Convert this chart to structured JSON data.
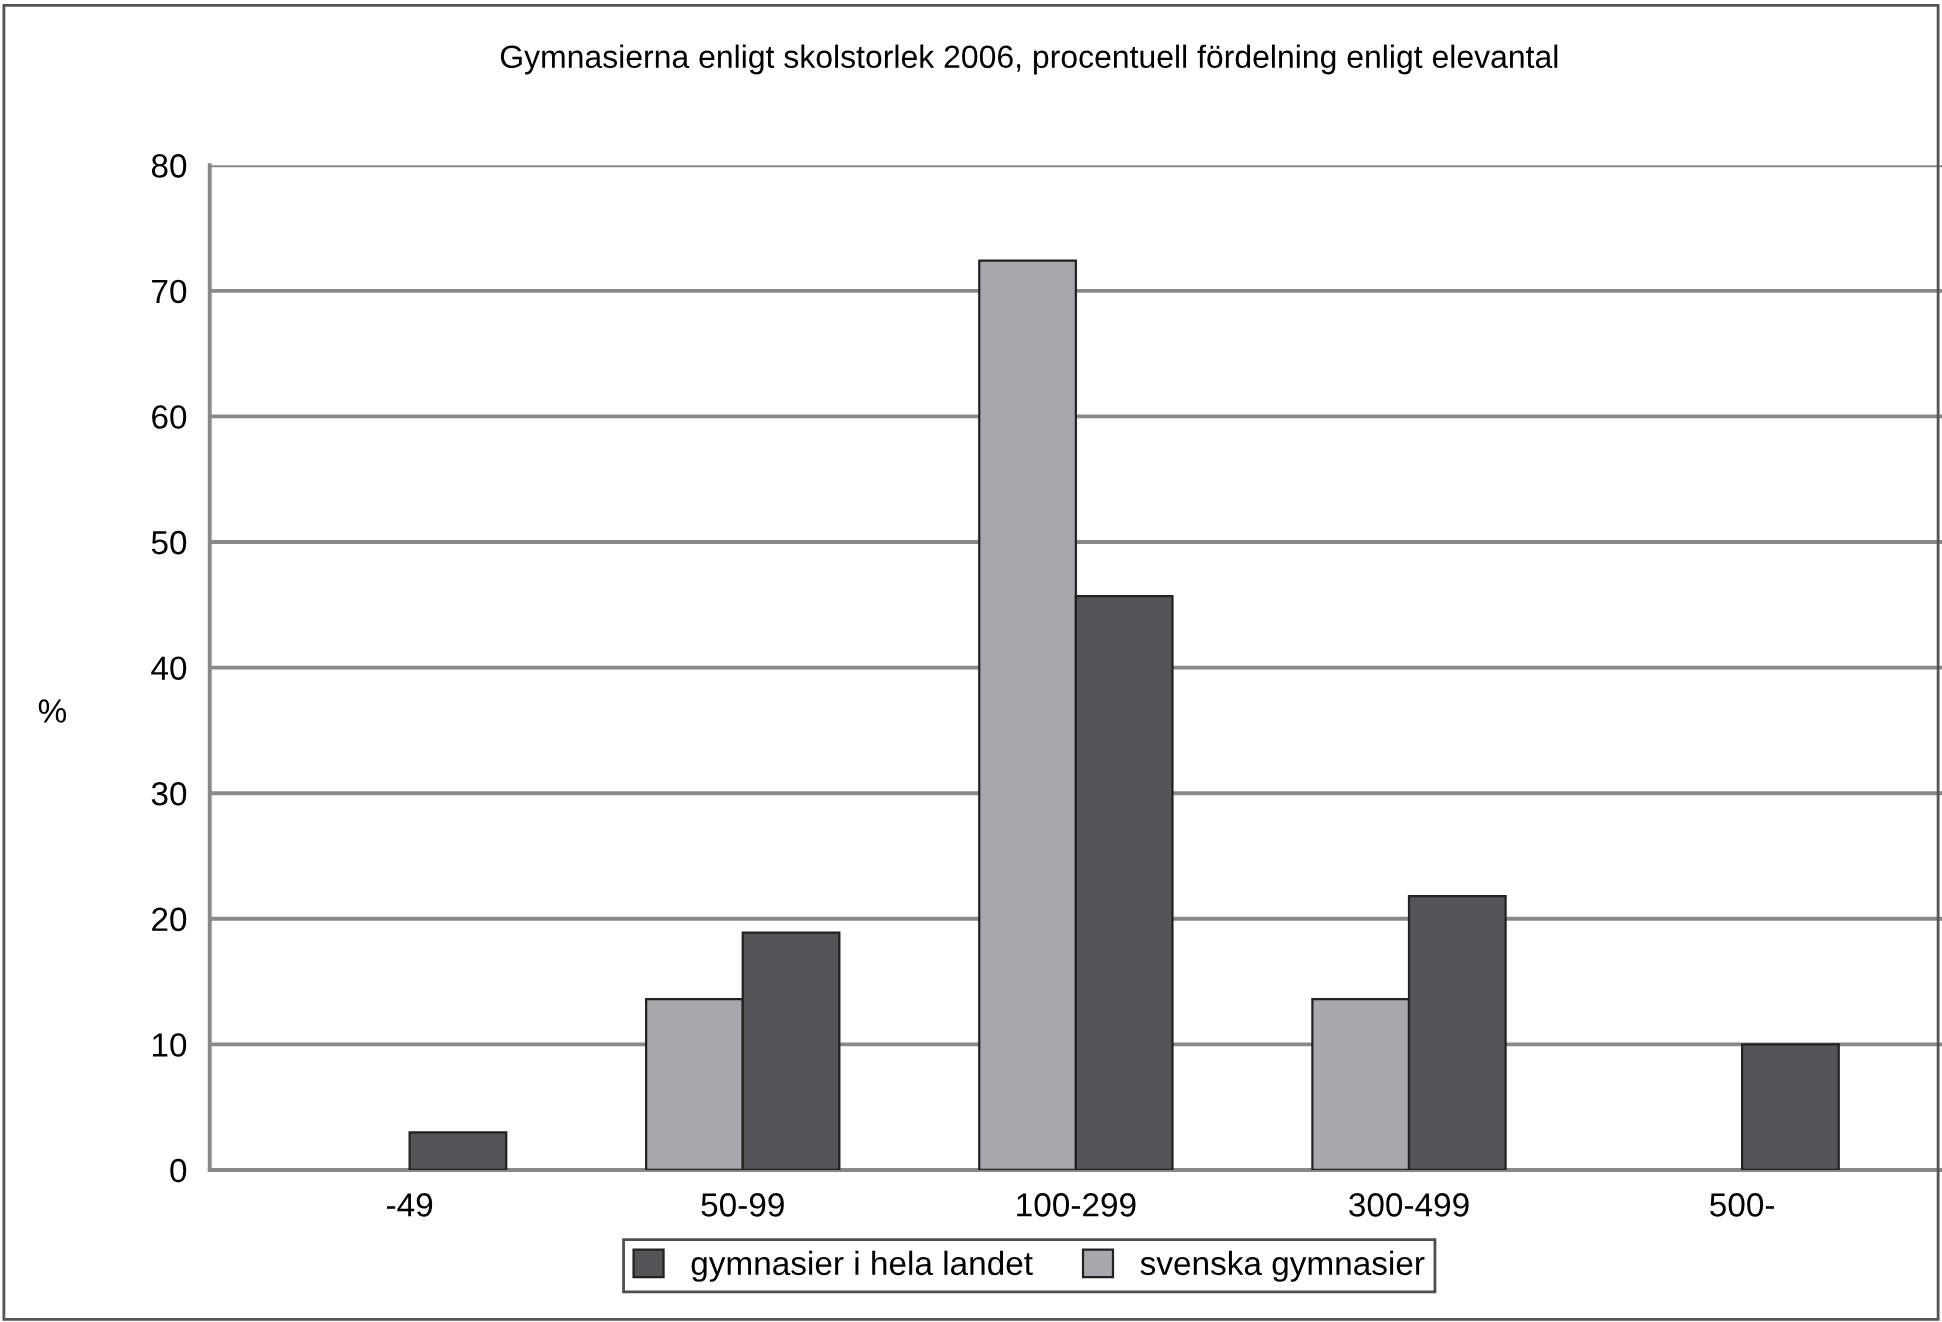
{
  "chart_data": {
    "type": "bar",
    "title": "Gymnasierna enligt skolstorlek 2006, procentuell fördelning enligt elevantal",
    "ylabel": "%",
    "categories": [
      "-49",
      "50-99",
      "100-299",
      "300-499",
      "500-"
    ],
    "series": [
      {
        "name": "svenska gymnasier",
        "color": "#a7a8ac",
        "values": [
          null,
          13.6,
          72.4,
          13.6,
          null
        ]
      },
      {
        "name": "gymnasier i hela landet",
        "color": "#545557",
        "values": [
          3.0,
          18.9,
          45.7,
          21.8,
          10.0
        ]
      }
    ],
    "ylim": [
      0,
      80
    ],
    "yticks": [
      0,
      10,
      20,
      30,
      40,
      50,
      60,
      70,
      80
    ],
    "grid": "y",
    "legend": "bottom"
  }
}
